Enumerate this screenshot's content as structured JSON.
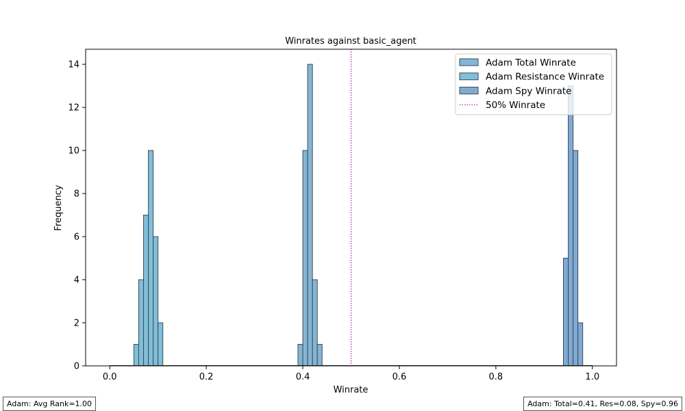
{
  "chart_data": {
    "type": "histogram",
    "title": "Winrates against basic_agent",
    "xlabel": "Winrate",
    "ylabel": "Frequency",
    "xlim": [
      -0.05,
      1.05
    ],
    "ylim": [
      0,
      14.7
    ],
    "xticks": [
      0.0,
      0.2,
      0.4,
      0.6,
      0.8,
      1.0
    ],
    "xtick_labels": [
      "0.0",
      "0.2",
      "0.4",
      "0.6",
      "0.8",
      "1.0"
    ],
    "yticks": [
      0,
      2,
      4,
      6,
      8,
      10,
      12,
      14
    ],
    "ytick_labels": [
      "0",
      "2",
      "4",
      "6",
      "8",
      "10",
      "12",
      "14"
    ],
    "bin_width": 0.01,
    "legend_position": "top-right",
    "reference_line": {
      "x": 0.5,
      "label": "50% Winrate",
      "color": "#8b008b",
      "style": "dotted"
    },
    "series": [
      {
        "name": "Adam Total Winrate",
        "color": "#6fa8cc",
        "bins": [
          [
            0.39,
            1
          ],
          [
            0.4,
            10
          ],
          [
            0.41,
            14
          ],
          [
            0.42,
            4
          ],
          [
            0.43,
            1
          ]
        ]
      },
      {
        "name": "Adam Resistance Winrate",
        "color": "#6ab4d0",
        "bins": [
          [
            0.05,
            1
          ],
          [
            0.06,
            4
          ],
          [
            0.07,
            7
          ],
          [
            0.08,
            10
          ],
          [
            0.09,
            6
          ],
          [
            0.1,
            2
          ]
        ]
      },
      {
        "name": "Adam Spy Winrate",
        "color": "#6b9bcb",
        "bins": [
          [
            0.94,
            5
          ],
          [
            0.95,
            13
          ],
          [
            0.96,
            10
          ],
          [
            0.97,
            2
          ]
        ]
      }
    ]
  },
  "footnotes": {
    "left": "Adam: Avg Rank=1.00",
    "right": "Adam: Total=0.41, Res=0.08, Spy=0.96"
  }
}
